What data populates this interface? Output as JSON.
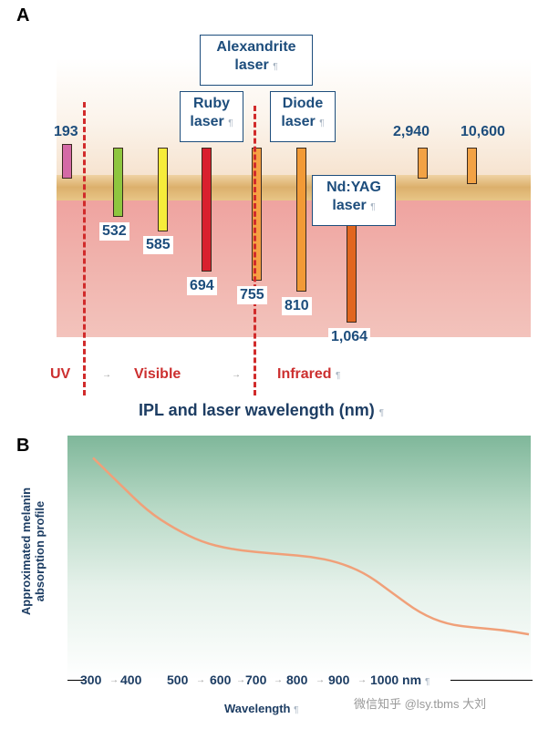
{
  "panel_a": {
    "letter": "A",
    "wavelength_labels": {
      "w193": "193",
      "w532": "532",
      "w585": "585",
      "w694": "694",
      "w755": "755",
      "w810": "810",
      "w1064": "1,064",
      "w2940": "2,940",
      "w10600": "10,600"
    },
    "laser_labels": {
      "alexandrite_line1": "Alexandrite",
      "alexandrite_line2": "laser",
      "ruby_line1": "Ruby",
      "ruby_line2": "laser",
      "diode_line1": "Diode",
      "diode_line2": "laser",
      "ndyag_line1": "Nd:YAG",
      "ndyag_line2": "laser"
    },
    "regions": {
      "uv": "UV",
      "visible": "Visible",
      "infrared": "Infrared"
    },
    "axis_title": "IPL and laser wavelength (nm)",
    "paragraph_mark": "¶",
    "arrow_mark": "→",
    "bar_colors": {
      "b193": "#d46aa6",
      "b532": "#8ec63f",
      "b585": "#f6ec3a",
      "b694": "#d9202e",
      "b755": "#f6a043",
      "b810": "#f29a36",
      "b1064": "#e1661f",
      "b2940": "#f2a245",
      "b10600": "#f2a245"
    }
  },
  "panel_b": {
    "letter": "B",
    "ylabel_line1": "Approximated melanin",
    "ylabel_line2": "absorption profile",
    "xlabel": "Wavelength",
    "ticks": [
      "300",
      "400",
      "500",
      "600",
      "700",
      "800",
      "900",
      "1000 nm"
    ],
    "curve_color": "#f0a079",
    "curve": {
      "type": "line",
      "x": [
        300,
        350,
        400,
        450,
        500,
        550,
        600,
        650,
        700,
        750,
        800,
        850,
        900,
        950,
        1000,
        1050,
        1100
      ],
      "y": [
        1.0,
        0.88,
        0.76,
        0.68,
        0.62,
        0.59,
        0.575,
        0.565,
        0.555,
        0.53,
        0.48,
        0.39,
        0.3,
        0.25,
        0.235,
        0.225,
        0.205
      ],
      "xlim": [
        300,
        1100
      ],
      "ylim": [
        0,
        1.1
      ]
    }
  },
  "watermark": "微信知乎 @lsy.tbms 大刘"
}
